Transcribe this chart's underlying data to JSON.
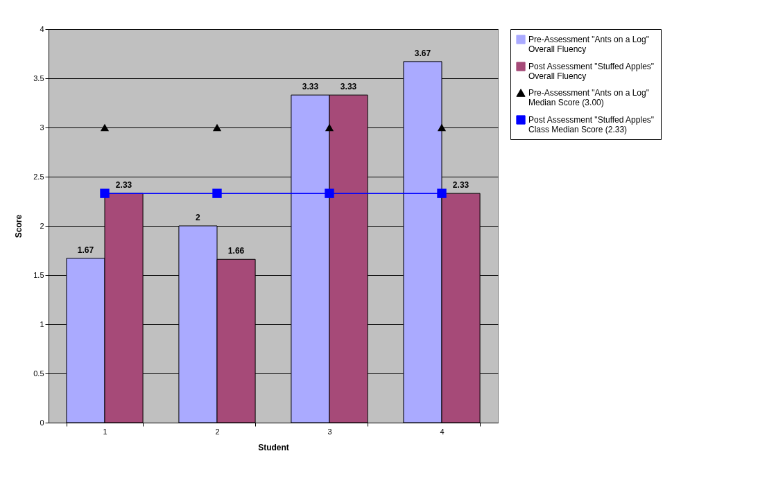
{
  "chart_data": {
    "type": "bar",
    "xlabel": "Student",
    "ylabel": "Score",
    "categories": [
      "1",
      "2",
      "3",
      "4"
    ],
    "ylim": [
      0,
      4
    ],
    "yticks": [
      0,
      0.5,
      1,
      1.5,
      2,
      2.5,
      3,
      3.5,
      4
    ],
    "grid": "y",
    "legend": "right",
    "series": [
      {
        "name": "Pre-Assessment \"Ants on a Log\" Overall Fluency",
        "color": "#aaaaff",
        "values": [
          1.67,
          2,
          3.33,
          3.67
        ],
        "value_labels": [
          "1.67",
          "2",
          "3.33",
          "3.67"
        ]
      },
      {
        "name": "Post Assessment \"Stuffed Apples\" Overall Fluency",
        "color": "#a64a78",
        "values": [
          2.33,
          1.66,
          3.33,
          2.33
        ],
        "value_labels": [
          "2.33",
          "1.66",
          "3.33",
          "2.33"
        ]
      },
      {
        "name": "Pre-Assessment \"Ants on a Log\" Median Score (3.00)",
        "type": "scatter",
        "marker": "triangle",
        "color": "#000000",
        "values": [
          3,
          3,
          3,
          3
        ]
      },
      {
        "name": "Post Assessment \"Stuffed Apples\" Class Median Score (2.33)",
        "type": "line",
        "marker": "square",
        "color": "#0000ff",
        "values": [
          2.33,
          2.33,
          2.33,
          2.33
        ]
      }
    ]
  }
}
